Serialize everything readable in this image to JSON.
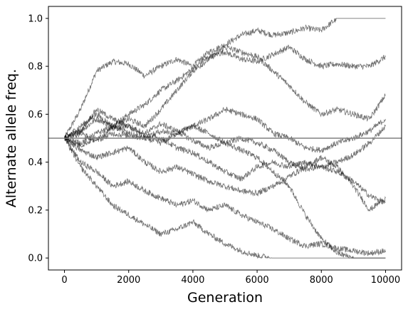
{
  "chart_data": {
    "type": "line",
    "xlabel": "Generation",
    "ylabel": "Alternate allele freq.",
    "xlim": [
      -500,
      10500
    ],
    "ylim": [
      -0.05,
      1.05
    ],
    "xticks": [
      0,
      2000,
      4000,
      6000,
      8000,
      10000
    ],
    "xtick_labels": [
      "0",
      "2000",
      "4000",
      "6000",
      "8000",
      "10000"
    ],
    "yticks": [
      0.0,
      0.2,
      0.4,
      0.6,
      0.8,
      1.0
    ],
    "ytick_labels": [
      "0.0",
      "0.2",
      "0.4",
      "0.6",
      "0.8",
      "1.0"
    ],
    "grid": false,
    "reference_line": {
      "y": 0.5,
      "color": "#808080"
    },
    "line_color": "#000000",
    "series": [
      {
        "x": [
          0,
          500,
          1000,
          1500,
          2000,
          2500,
          3000,
          3500,
          4000,
          4500,
          5000,
          5500,
          6000,
          6500,
          7000,
          7500,
          8000,
          8500,
          9000,
          9500,
          10000
        ],
        "values": [
          0.5,
          0.62,
          0.78,
          0.82,
          0.81,
          0.76,
          0.8,
          0.83,
          0.8,
          0.86,
          0.89,
          0.93,
          0.95,
          0.93,
          0.94,
          0.96,
          0.95,
          1.0,
          1.0,
          1.0,
          1.0
        ]
      },
      {
        "x": [
          0,
          500,
          1000,
          1500,
          2000,
          2500,
          3000,
          3500,
          4000,
          4500,
          5000,
          5500,
          6000,
          6500,
          7000,
          7500,
          8000,
          8500,
          9000,
          9500,
          10000
        ],
        "values": [
          0.5,
          0.53,
          0.58,
          0.55,
          0.6,
          0.64,
          0.7,
          0.74,
          0.79,
          0.84,
          0.86,
          0.83,
          0.82,
          0.85,
          0.88,
          0.83,
          0.8,
          0.81,
          0.8,
          0.8,
          0.84
        ]
      },
      {
        "x": [
          0,
          500,
          1000,
          1500,
          2000,
          2500,
          3000,
          3500,
          4000,
          4500,
          5000,
          5500,
          6000,
          6500,
          7000,
          7500,
          8000,
          8500,
          9000,
          9500,
          10000
        ],
        "values": [
          0.5,
          0.55,
          0.6,
          0.55,
          0.58,
          0.55,
          0.62,
          0.7,
          0.78,
          0.83,
          0.88,
          0.86,
          0.84,
          0.78,
          0.72,
          0.65,
          0.6,
          0.62,
          0.6,
          0.58,
          0.68
        ]
      },
      {
        "x": [
          0,
          500,
          1000,
          1500,
          2000,
          2500,
          3000,
          3500,
          4000,
          4500,
          5000,
          5500,
          6000,
          6500,
          7000,
          7500,
          8000,
          8500,
          9000,
          9500,
          10000
        ],
        "values": [
          0.5,
          0.48,
          0.52,
          0.55,
          0.52,
          0.5,
          0.48,
          0.52,
          0.55,
          0.58,
          0.62,
          0.6,
          0.58,
          0.52,
          0.5,
          0.46,
          0.45,
          0.48,
          0.5,
          0.53,
          0.58
        ]
      },
      {
        "x": [
          0,
          500,
          1000,
          1500,
          2000,
          2500,
          3000,
          3500,
          4000,
          4500,
          5000,
          5500,
          6000,
          6500,
          7000,
          7500,
          8000,
          8500,
          9000,
          9500,
          10000
        ],
        "values": [
          0.5,
          0.53,
          0.62,
          0.58,
          0.55,
          0.52,
          0.56,
          0.53,
          0.49,
          0.46,
          0.48,
          0.5,
          0.48,
          0.45,
          0.4,
          0.37,
          0.38,
          0.4,
          0.43,
          0.48,
          0.55
        ]
      },
      {
        "x": [
          0,
          500,
          1000,
          1500,
          2000,
          2500,
          3000,
          3500,
          4000,
          4500,
          5000,
          5500,
          6000,
          6500,
          7000,
          7500,
          8000,
          8500,
          9000,
          9500,
          10000
        ],
        "values": [
          0.5,
          0.47,
          0.5,
          0.54,
          0.55,
          0.51,
          0.5,
          0.46,
          0.44,
          0.4,
          0.36,
          0.33,
          0.38,
          0.4,
          0.38,
          0.4,
          0.38,
          0.36,
          0.32,
          0.26,
          0.23
        ]
      },
      {
        "x": [
          0,
          500,
          1000,
          1500,
          2000,
          2500,
          3000,
          3500,
          4000,
          4500,
          5000,
          5500,
          6000,
          6500,
          7000,
          7500,
          8000,
          8500,
          9000,
          9500,
          10000
        ],
        "values": [
          0.5,
          0.45,
          0.42,
          0.44,
          0.46,
          0.4,
          0.36,
          0.38,
          0.35,
          0.32,
          0.3,
          0.28,
          0.27,
          0.3,
          0.34,
          0.38,
          0.42,
          0.38,
          0.3,
          0.2,
          0.25
        ]
      },
      {
        "x": [
          0,
          500,
          1000,
          1500,
          2000,
          2500,
          3000,
          3500,
          4000,
          4500,
          5000,
          5500,
          6000,
          6500,
          7000,
          7500,
          8000,
          8500,
          9000,
          9500,
          10000
        ],
        "values": [
          0.5,
          0.4,
          0.36,
          0.3,
          0.32,
          0.28,
          0.25,
          0.22,
          0.24,
          0.2,
          0.22,
          0.18,
          0.15,
          0.12,
          0.08,
          0.05,
          0.06,
          0.04,
          0.03,
          0.02,
          0.03
        ]
      },
      {
        "x": [
          0,
          500,
          1000,
          1500,
          2000,
          2500,
          3000,
          3500,
          4000,
          4500,
          5000,
          5500,
          6000,
          6500,
          7000,
          7500,
          8000,
          8500,
          9000,
          9500,
          10000
        ],
        "values": [
          0.5,
          0.38,
          0.3,
          0.22,
          0.18,
          0.14,
          0.1,
          0.12,
          0.15,
          0.1,
          0.06,
          0.03,
          0.01,
          0.0,
          0.0,
          0.0,
          0.0,
          0.0,
          0.0,
          0.0,
          0.0
        ]
      },
      {
        "x": [
          0,
          500,
          1000,
          1500,
          2000,
          2500,
          3000,
          3500,
          4000,
          4500,
          5000,
          5500,
          6000,
          6500,
          7000,
          7500,
          8000,
          8500,
          9000,
          9500,
          10000
        ],
        "values": [
          0.5,
          0.52,
          0.49,
          0.52,
          0.51,
          0.5,
          0.53,
          0.52,
          0.55,
          0.52,
          0.48,
          0.45,
          0.42,
          0.36,
          0.3,
          0.18,
          0.08,
          0.02,
          0.0,
          0.0,
          0.0
        ]
      }
    ]
  }
}
